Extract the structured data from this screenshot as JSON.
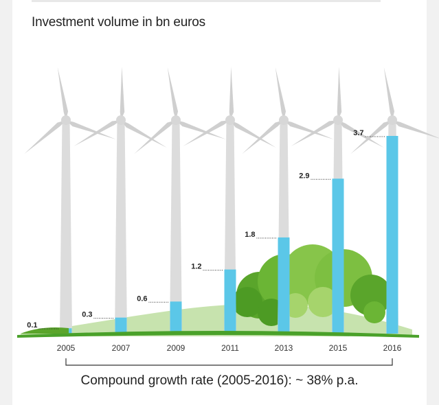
{
  "chart_data": {
    "type": "bar",
    "title": "Investment volume in bn euros",
    "categories": [
      "2005",
      "2007",
      "2009",
      "2011",
      "2013",
      "2015",
      "2016"
    ],
    "values": [
      0.1,
      0.3,
      0.6,
      1.2,
      1.8,
      2.9,
      3.7
    ],
    "value_labels": [
      "0.1",
      "0.3",
      "0.6",
      "1.2",
      "1.8",
      "2.9",
      "3.7"
    ],
    "ylim": [
      0,
      3.7
    ],
    "grid": false,
    "bar_color": "#5bc7e8",
    "tower_color": "#dcdcdc",
    "ground_color": "#4aa12a",
    "footer_note": "Compound growth rate (2005-2016): ~ 38% p.a."
  }
}
